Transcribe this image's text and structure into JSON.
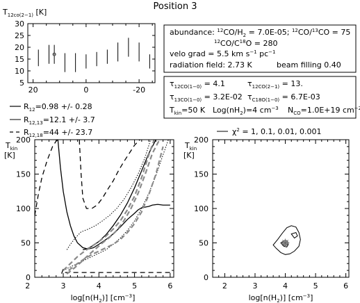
{
  "figure": {
    "title": "Position 3"
  },
  "info_box": {
    "abundance_prefix": "abundance: ",
    "ratio1_rest": "CO/H",
    "ratio1_val": " = 7.0E-05;  ",
    "ratio2_val": " = 75",
    "ratio3_val": " = 280",
    "velo_grad": "velo grad = 5.5 km s",
    "velo_grad_unit": " pc",
    "radiation_field": "radiation field: 2.73 K",
    "beam_filling": "beam filling 0.40"
  },
  "model_box": {
    "tau_a_val": "= 4.1",
    "tau_b_val": "= 13.",
    "tau_c_val": "= 3.2E-02",
    "tau_d_val": "= 6.7E-03",
    "tkin_text": "=50 K",
    "lognh2_text": "Log(nH",
    "lognh2_val": ")=4 cm",
    "nco_val": "=1.0E+19 cm"
  },
  "legend_left": {
    "items": [
      {
        "label": "=0.98 +/- 0.28"
      },
      {
        "label": "=12.1 +/- 3.7"
      },
      {
        "label": "=44 +/- 23.7"
      }
    ]
  },
  "legend_right": {
    "label": " = 1, 0.1, 0.01, 0.001"
  },
  "chart_data": [
    {
      "type": "scatter",
      "panel": "spectrum",
      "ylabel": "T12co(2-1) [K]",
      "xlim": [
        22,
        -26
      ],
      "ylim": [
        5,
        30
      ],
      "x_ticks": [
        20,
        0,
        -20
      ],
      "y_ticks": [
        5,
        10,
        15,
        20,
        25,
        30
      ],
      "points": [
        {
          "x": 18,
          "y": 15.5,
          "err": 3.5
        },
        {
          "x": 14,
          "y": 17,
          "err": 4
        },
        {
          "x": 12,
          "y": 17,
          "err": 4
        },
        {
          "x": 8,
          "y": 13.5,
          "err": 4
        },
        {
          "x": 4,
          "y": 13.5,
          "err": 4
        },
        {
          "x": 0,
          "y": 14,
          "err": 3
        },
        {
          "x": -4,
          "y": 15,
          "err": 3
        },
        {
          "x": -8,
          "y": 16,
          "err": 3
        },
        {
          "x": -12,
          "y": 18,
          "err": 4
        },
        {
          "x": -16,
          "y": 20,
          "err": 4
        },
        {
          "x": -20,
          "y": 18,
          "err": 4
        },
        {
          "x": -24,
          "y": 14,
          "err": 3
        }
      ],
      "marked_point_x": 12
    },
    {
      "type": "line",
      "panel": "lvg-ratios",
      "xlabel": "log[n(H2)] [cm-3]",
      "ylabel": "Tkin [K]",
      "xlim": [
        2.2,
        6.1
      ],
      "ylim": [
        0,
        200
      ],
      "x_ticks": [
        2,
        3,
        4,
        5,
        6
      ],
      "y_ticks": [
        0,
        50,
        100,
        150,
        200
      ],
      "series": [
        {
          "style": "solid",
          "x": [
            2.85,
            2.92,
            3.0,
            3.1,
            3.2,
            3.3,
            3.4,
            3.55,
            3.7,
            3.85,
            4.0,
            4.2,
            4.4,
            4.6,
            4.8,
            5.0,
            5.1,
            5.2,
            5.3,
            5.4,
            5.5,
            5.65,
            5.8,
            6.0
          ],
          "y": [
            200,
            160,
            125,
            95,
            75,
            60,
            50,
            43,
            41,
            43,
            48,
            55,
            63,
            73,
            84,
            93,
            98,
            101,
            102,
            103,
            105,
            106,
            105,
            105
          ]
        },
        {
          "style": "solid",
          "x": [
            3.55,
            3.65,
            3.8,
            4.0,
            4.2,
            4.4,
            4.6,
            4.8,
            5.0,
            5.2,
            5.4,
            5.6
          ],
          "y": [
            40,
            41,
            45,
            52,
            62,
            75,
            90,
            108,
            130,
            155,
            180,
            200
          ]
        },
        {
          "style": "dotted",
          "x": [
            3.1,
            3.2,
            3.35,
            3.5,
            3.7,
            3.9,
            4.1,
            4.3,
            4.5,
            4.7,
            4.9,
            5.1,
            5.3,
            5.45
          ],
          "y": [
            40,
            48,
            58,
            66,
            70,
            75,
            82,
            90,
            100,
            113,
            130,
            150,
            175,
            200
          ]
        },
        {
          "style": "dotted",
          "x": [
            3.0,
            3.2,
            3.4,
            3.6,
            3.8,
            4.0,
            4.2,
            4.4,
            4.6,
            4.8,
            5.0,
            5.2,
            5.4,
            5.6,
            5.8,
            5.95
          ],
          "y": [
            10,
            15,
            20,
            25,
            30,
            35,
            40,
            48,
            57,
            68,
            82,
            100,
            122,
            148,
            178,
            200
          ]
        },
        {
          "style": "dashed",
          "x": [
            2.2,
            2.3,
            2.4,
            2.55,
            2.7,
            2.8,
            2.85
          ],
          "y": [
            90,
            120,
            145,
            170,
            190,
            198,
            200
          ]
        },
        {
          "style": "dashed",
          "x": [
            3.45,
            3.5,
            3.55,
            3.65,
            3.8,
            3.95,
            4.1,
            4.25,
            4.4,
            4.55,
            4.7,
            4.85,
            5.0,
            5.15
          ],
          "y": [
            200,
            150,
            115,
            100,
            100,
            105,
            115,
            128,
            140,
            155,
            168,
            180,
            192,
            200
          ]
        },
        {
          "style": "dashed",
          "x": [
            3.0,
            2.95,
            2.93
          ],
          "y": [
            12,
            5,
            0
          ]
        },
        {
          "style": "dashed",
          "x": [
            3.05,
            3.3,
            3.6,
            4.0,
            4.5,
            5.0,
            5.5,
            6.0
          ],
          "y": [
            7,
            7,
            7,
            7,
            7,
            7,
            7,
            7
          ]
        },
        {
          "style": "gray-dashed",
          "x": [
            3.0,
            3.2,
            3.4,
            3.6,
            3.8,
            4.0,
            4.2,
            4.4,
            4.6,
            4.8,
            5.0,
            5.2,
            5.4,
            5.55
          ],
          "y": [
            10,
            20,
            30,
            38,
            45,
            52,
            60,
            70,
            82,
            98,
            118,
            145,
            178,
            200
          ]
        },
        {
          "style": "gray-dashed",
          "x": [
            3.1,
            3.3,
            3.5,
            3.7,
            3.9,
            4.1,
            4.3,
            4.5,
            4.7,
            4.9,
            5.1,
            5.3,
            5.5,
            5.7
          ],
          "y": [
            5,
            13,
            22,
            32,
            41,
            50,
            58,
            68,
            82,
            100,
            122,
            150,
            180,
            200
          ]
        },
        {
          "style": "gray-dashed",
          "x": [
            3.15,
            3.4,
            3.6,
            3.8,
            4.0,
            4.2,
            4.4,
            4.6,
            4.8,
            5.0,
            5.2,
            5.4,
            5.6,
            5.8
          ],
          "y": [
            10,
            20,
            27,
            33,
            38,
            43,
            48,
            55,
            65,
            78,
            95,
            120,
            150,
            190
          ]
        }
      ]
    },
    {
      "type": "line",
      "panel": "chi2-contours",
      "xlabel": "log[n(H2)] [cm-3]",
      "ylabel": "Tkin [K]",
      "xlim": [
        1.6,
        6.1
      ],
      "ylim": [
        0,
        200
      ],
      "x_ticks": [
        2,
        3,
        4,
        5,
        6
      ],
      "y_ticks": [
        0,
        50,
        100,
        150,
        200
      ],
      "contours": [
        {
          "level": "1",
          "x": [
            3.6,
            3.75,
            3.9,
            4.05,
            4.2,
            4.35,
            4.45,
            4.5,
            4.45,
            4.3,
            4.15,
            4.0,
            3.85,
            3.7,
            3.6
          ],
          "y": [
            47,
            55,
            64,
            72,
            75,
            73,
            65,
            55,
            45,
            38,
            34,
            33,
            36,
            42,
            47
          ]
        },
        {
          "level": "0.1",
          "x": [
            4.2,
            4.35,
            4.4,
            4.3,
            4.2
          ],
          "y": [
            63,
            65,
            60,
            57,
            63
          ]
        },
        {
          "level": "0.01",
          "x": [
            3.85,
            3.95,
            4.05,
            4.1,
            4.05,
            3.95,
            3.85
          ],
          "y": [
            50,
            53,
            52,
            48,
            44,
            45,
            50
          ]
        }
      ],
      "best_fit": {
        "x": 4.0,
        "y": 50
      }
    }
  ]
}
